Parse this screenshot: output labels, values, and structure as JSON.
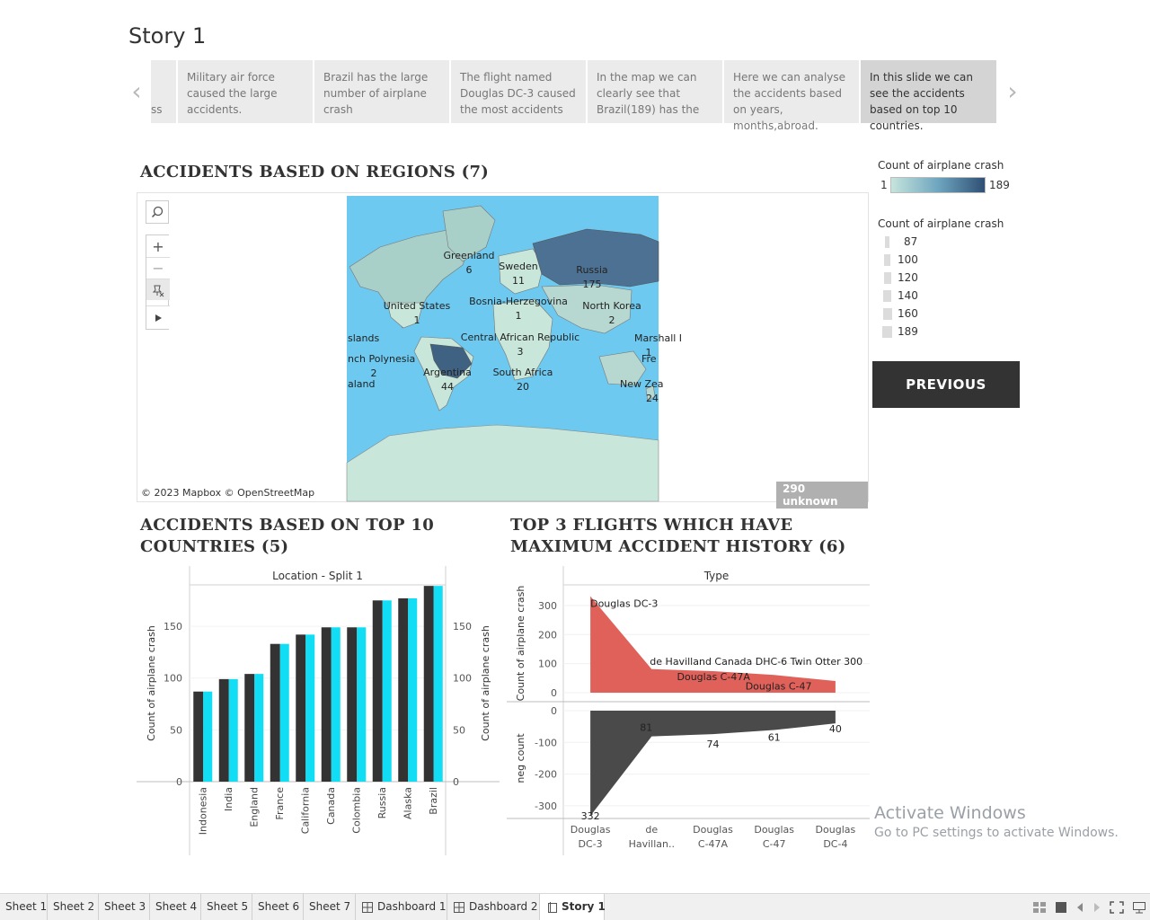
{
  "story": {
    "title": "Story 1",
    "captions": [
      {
        "text": "ss"
      },
      {
        "text": "Military air force caused the large accidents."
      },
      {
        "text": "Brazil has the large number of airplane crash"
      },
      {
        "text": "The flight named Douglas DC-3 caused the most accidents"
      },
      {
        "text": "In the map we can clearly see that Brazil(189) has the"
      },
      {
        "text": "Here we can analyse the accidents based on years, months,abroad."
      },
      {
        "text": "In this slide we can see the accidents based on top 10 countries."
      }
    ],
    "prev_arrow": "‹",
    "next_arrow": "›"
  },
  "map_section": {
    "title": "ACCIDENTS BASED ON REGIONS (7)",
    "attribution": "© 2023 Mapbox © OpenStreetMap",
    "unknown_badge": "290 unknown",
    "labels": [
      {
        "name": "Greenland",
        "value": "6"
      },
      {
        "name": "Sweden",
        "value": "11"
      },
      {
        "name": "Russia",
        "value": "175"
      },
      {
        "name": "United States",
        "value": "1"
      },
      {
        "name": "Bosnia-Herzegovina",
        "value": "1"
      },
      {
        "name": "North Korea",
        "value": "2"
      },
      {
        "name": "Central African Republic",
        "value": "3"
      },
      {
        "name": "Marshall I",
        "value": "1"
      },
      {
        "name": "slands",
        "value": ""
      },
      {
        "name": "nch Polynesia",
        "value": "2"
      },
      {
        "name": "Argentina",
        "value": "44"
      },
      {
        "name": "South Africa",
        "value": "20"
      },
      {
        "name": "aland",
        "value": ""
      },
      {
        "name": "New Zea",
        "value": "24"
      },
      {
        "name": "Fre",
        "value": ""
      }
    ],
    "tools": {
      "search": "search-icon",
      "zoom_in": "+",
      "zoom_out": "−",
      "pin": "pin-icon",
      "play": "play-icon"
    }
  },
  "legends": {
    "color_title": "Count of airplane crash",
    "color_min": "1",
    "color_max": "189",
    "colors": [
      "#c6e4dc",
      "#2f4f74"
    ],
    "size_title": "Count of airplane crash",
    "size_items": [
      "87",
      "100",
      "120",
      "140",
      "160",
      "189"
    ]
  },
  "previous_button": "PREVIOUS",
  "chart_data": [
    {
      "type": "bar",
      "title": "ACCIDENTS BASED ON TOP 10 COUNTRIES (5)",
      "header": "Location - Split 1",
      "categories": [
        "Indonesia",
        "India",
        "England",
        "France",
        "California",
        "Canada",
        "Colombia",
        "Russia",
        "Alaska",
        "Brazil"
      ],
      "series": [
        {
          "values": [
            87,
            99,
            104,
            133,
            142,
            149,
            149,
            175,
            177,
            189
          ],
          "color": "#333333"
        },
        {
          "values": [
            87,
            99,
            104,
            133,
            142,
            149,
            149,
            175,
            177,
            189
          ],
          "color": "#11ddf5"
        }
      ],
      "ylabel": "Count of airplane crash",
      "y2label": "Count of airplane crash",
      "ylim": [
        0,
        190
      ],
      "yticks": [
        0,
        50,
        100,
        150
      ]
    },
    {
      "type": "area",
      "title": "TOP 3 FLIGHTS WHICH HAVE MAXIMUM ACCIDENT HISTORY (6)",
      "header": "Type",
      "categories": [
        "Douglas DC-3",
        "de Havillan..",
        "Douglas C-47A",
        "Douglas C-47",
        "Douglas DC-4"
      ],
      "category_lines": [
        [
          "Douglas",
          "DC-3"
        ],
        [
          "de",
          "Havillan.."
        ],
        [
          "Douglas",
          "C-47A"
        ],
        [
          "Douglas",
          "C-47"
        ],
        [
          "Douglas",
          "DC-4"
        ]
      ],
      "series": [
        {
          "name": "Count of airplane crash",
          "values": [
            332,
            81,
            74,
            61,
            40
          ],
          "color": "#e0605a",
          "labels": [
            "Douglas DC-3",
            "de Havilland Canada DHC-6 Twin Otter 300",
            "Douglas C-47A",
            "Douglas C-47",
            ""
          ]
        },
        {
          "name": "neg count",
          "values": [
            -332,
            -81,
            -74,
            -61,
            -40
          ],
          "color": "#4a4a4a",
          "labels": [
            "332",
            "81",
            "74",
            "61",
            "40"
          ]
        }
      ],
      "ylabel_top": "Count of airplane crash",
      "ylabel_bottom": "neg count",
      "top_ylim": [
        0,
        340
      ],
      "top_ticks": [
        0,
        100,
        200,
        300
      ],
      "bottom_ylim": [
        -340,
        0
      ],
      "bottom_ticks": [
        0,
        -100,
        -200,
        -300
      ]
    }
  ],
  "tabs": [
    "Sheet 1",
    "Sheet 2",
    "Sheet 3",
    "Sheet 4",
    "Sheet 5",
    "Sheet 6",
    "Sheet 7",
    "Dashboard 1",
    "Dashboard 2",
    "Story 1"
  ],
  "active_tab": "Story 1",
  "status_icons": [
    "grid-view-icon",
    "single-view-icon",
    "prev-sheet-icon",
    "next-sheet-icon",
    "fit-screen-icon",
    "presentation-icon"
  ],
  "watermark": {
    "line1": "Activate Windows",
    "line2": "Go to PC settings to activate Windows."
  }
}
